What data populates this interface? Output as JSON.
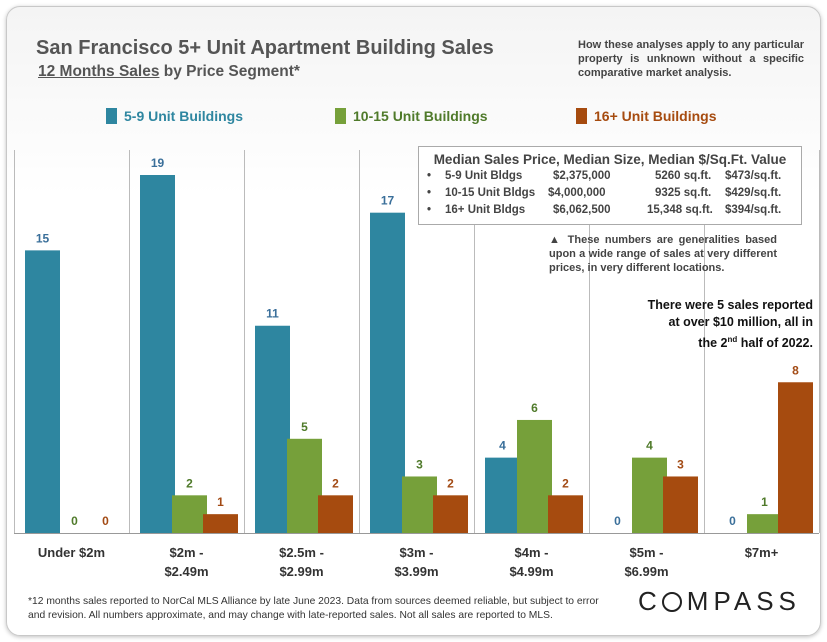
{
  "header": {
    "title": "San Francisco 5+ Unit Apartment Building Sales",
    "subtitle_underlined": "12 Months Sales",
    "subtitle_rest": " by Price Segment*",
    "disclaimer": "How these analyses apply to any particular property is unknown without a specific comparative market analysis."
  },
  "stats_box": {
    "heading": "Median Sales Price, Median Size, Median $/Sq.Ft. Value",
    "bullet": "•",
    "rows": [
      {
        "label": "5-9 Unit Bldgs",
        "price": "$2,375,000",
        "size": "5260 sq.ft.",
        "ppsf": "$473/sq.ft."
      },
      {
        "label": "10-15 Unit Bldgs",
        "price": "$4,000,000",
        "size": "9325 sq.ft.",
        "ppsf": "$429/sq.ft."
      },
      {
        "label": "16+ Unit Bldgs",
        "price": "$6,062,500",
        "size": "15,348 sq.ft.",
        "ppsf": "$394/sq.ft."
      }
    ]
  },
  "note": "▲ These numbers are generalities based upon a wide range of sales at very different prices, in very different locations.",
  "callout": {
    "line1": "There were 5 sales reported",
    "line2": "at over $10 million, all in",
    "line3_pre": "the 2",
    "line3_sup": "nd",
    "line3_post": " half of 2022."
  },
  "footnote": "*12 months sales reported to NorCal MLS Alliance by late June 2023. Data from sources deemed reliable, but subject to error and revision. All numbers approximate, and may change with late-reported sales. Not all sales are reported to MLS.",
  "brand": {
    "logo_rest": "MPASS",
    "logo_first": "C"
  },
  "colors": {
    "series1": "#2e86a0",
    "series2": "#76a03a",
    "series3": "#a64b0f",
    "label1": "#3a6f9a",
    "label2": "#4f7a2a",
    "label3": "#a24a14"
  },
  "chart_data": {
    "type": "bar",
    "title": "San Francisco 5+ Unit Apartment Building Sales",
    "subtitle": "12 Months Sales by Price Segment*",
    "categories": [
      [
        "Under $2m"
      ],
      [
        "$2m -",
        "$2.49m"
      ],
      [
        "$2.5m -",
        "$2.99m"
      ],
      [
        "$3m -",
        "$3.99m"
      ],
      [
        "$4m -",
        "$4.99m"
      ],
      [
        "$5m -",
        "$6.99m"
      ],
      [
        "$7m+"
      ]
    ],
    "series": [
      {
        "name": "5-9 Unit Buildings",
        "values": [
          15,
          19,
          11,
          17,
          4,
          0,
          0
        ]
      },
      {
        "name": "10-15 Unit Buildings",
        "values": [
          0,
          2,
          5,
          3,
          6,
          4,
          1
        ]
      },
      {
        "name": "16+ Unit Buildings",
        "values": [
          0,
          1,
          2,
          2,
          2,
          3,
          8
        ]
      }
    ],
    "ylim": [
      0,
      19
    ],
    "grid": false,
    "legend": "top"
  }
}
